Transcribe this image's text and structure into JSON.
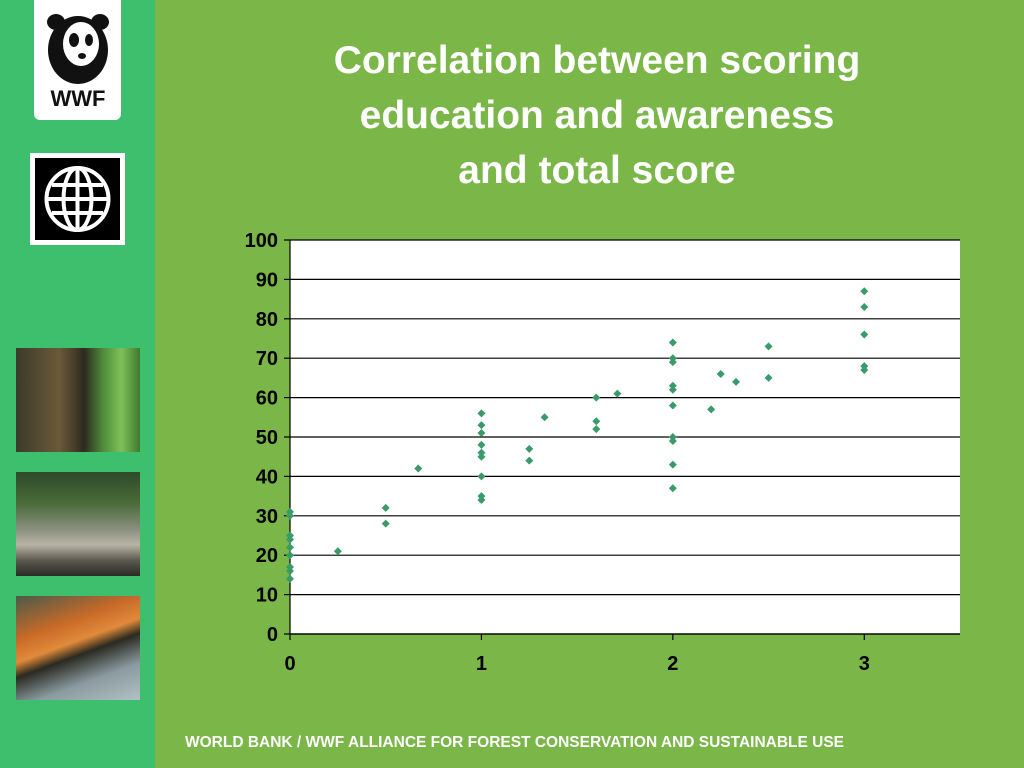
{
  "title_lines": [
    "Correlation between scoring",
    "education and awareness",
    "and total score"
  ],
  "footer": "WORLD BANK / WWF ALLIANCE FOR FOREST CONSERVATION AND SUSTAINABLE USE",
  "logos": {
    "wwf_text": "WWF",
    "wwf_icon": "panda-icon",
    "worldbank_icon": "globe-icon"
  },
  "colors": {
    "background": "#7ab648",
    "sidebar": "#3dbf6e",
    "marker": "#3a9a6a"
  },
  "chart_data": {
    "type": "scatter",
    "title": "",
    "xlabel": "",
    "ylabel": "",
    "xlim": [
      0,
      3.5
    ],
    "ylim": [
      0,
      100
    ],
    "x_ticks": [
      "0",
      "1",
      "2",
      "3"
    ],
    "y_ticks": [
      "0",
      "10",
      "20",
      "30",
      "40",
      "50",
      "60",
      "70",
      "80",
      "90",
      "100"
    ],
    "grid": "horizontal",
    "points": [
      [
        0,
        31
      ],
      [
        0,
        30
      ],
      [
        0,
        25
      ],
      [
        0,
        24
      ],
      [
        0,
        22
      ],
      [
        0,
        20
      ],
      [
        0,
        17
      ],
      [
        0,
        16
      ],
      [
        0,
        14
      ],
      [
        0.25,
        21
      ],
      [
        0.5,
        32
      ],
      [
        0.5,
        28
      ],
      [
        0.67,
        42
      ],
      [
        1,
        56
      ],
      [
        1,
        53
      ],
      [
        1,
        51
      ],
      [
        1,
        48
      ],
      [
        1,
        46
      ],
      [
        1,
        45
      ],
      [
        1,
        40
      ],
      [
        1,
        35
      ],
      [
        1,
        34
      ],
      [
        1.25,
        47
      ],
      [
        1.25,
        44
      ],
      [
        1.33,
        55
      ],
      [
        1.6,
        60
      ],
      [
        1.6,
        54
      ],
      [
        1.6,
        52
      ],
      [
        1.71,
        61
      ],
      [
        2,
        74
      ],
      [
        2,
        70
      ],
      [
        2,
        69
      ],
      [
        2,
        63
      ],
      [
        2,
        62
      ],
      [
        2,
        58
      ],
      [
        2,
        50
      ],
      [
        2,
        49
      ],
      [
        2,
        43
      ],
      [
        2,
        37
      ],
      [
        2.2,
        57
      ],
      [
        2.25,
        66
      ],
      [
        2.33,
        64
      ],
      [
        2.5,
        73
      ],
      [
        2.5,
        65
      ],
      [
        3,
        87
      ],
      [
        3,
        83
      ],
      [
        3,
        76
      ],
      [
        3,
        68
      ],
      [
        3,
        67
      ]
    ]
  }
}
